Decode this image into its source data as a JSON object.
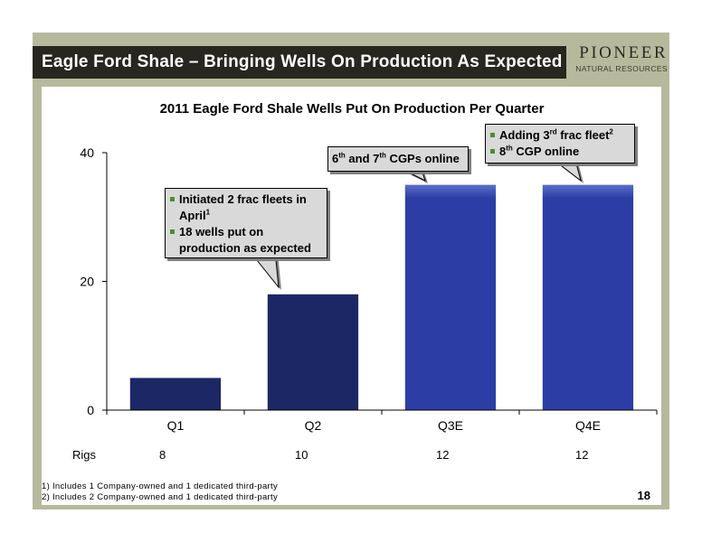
{
  "header": {
    "title": "Eagle Ford Shale – Bringing Wells On Production As Expected",
    "logo_name": "PIONEER",
    "logo_sub": "NATURAL RESOURCES"
  },
  "chart_data": {
    "type": "bar",
    "title": "2011 Eagle Ford Shale Wells Put On Production Per Quarter",
    "categories": [
      "Q1",
      "Q2",
      "Q3E",
      "Q4E"
    ],
    "values": [
      5,
      18,
      35,
      35
    ],
    "estimated": [
      false,
      false,
      true,
      true
    ],
    "ylim": [
      0,
      40
    ],
    "yticks": [
      0,
      20,
      40
    ],
    "ytick_labels": [
      "0",
      "20",
      "40"
    ],
    "grid": false,
    "colors": {
      "actual": "#1c2865",
      "estimate": "#2c3ea5",
      "estimate_highlight": "#5a6ec9"
    }
  },
  "rigs": {
    "label": "Rigs",
    "values": [
      "8",
      "10",
      "12",
      "12"
    ]
  },
  "callouts": [
    {
      "id": "q2",
      "items": [
        {
          "text": "Initiated 2 frac fleets in April",
          "sup": "1"
        },
        {
          "text": "18 wells put on production as expected",
          "sup": ""
        }
      ]
    },
    {
      "id": "q3",
      "line": {
        "n1": "6",
        "s1": "th",
        "mid": " and 7",
        "s2": "th",
        "rest": " CGPs online"
      }
    },
    {
      "id": "q4",
      "items": [
        {
          "text": "Adding 3",
          "ordinal": "rd",
          "text2": " frac fleet",
          "sup": "2"
        },
        {
          "text": "8",
          "ordinal": "th",
          "text2": " CGP online",
          "sup": ""
        }
      ]
    }
  ],
  "footnotes": [
    "1) Includes 1 Company-owned and 1 dedicated third-party",
    "2) Includes 2 Company-owned and 1 dedicated third-party"
  ],
  "page_number": "18"
}
